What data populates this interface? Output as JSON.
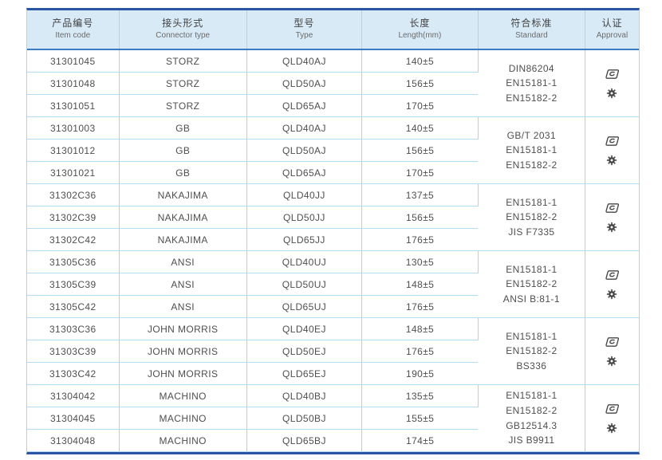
{
  "table": {
    "columns": [
      {
        "zh": "产品编号",
        "en": "Item code"
      },
      {
        "zh": "接头形式",
        "en": "Connector type"
      },
      {
        "zh": "型号",
        "en": "Type"
      },
      {
        "zh": "长度",
        "en": "Length(mm)"
      },
      {
        "zh": "符合标准",
        "en": "Standard"
      },
      {
        "zh": "认证",
        "en": "Approval"
      }
    ],
    "groups": [
      {
        "rows": [
          {
            "item_code": "31301045",
            "connector": "STORZ",
            "type": "QLD40AJ",
            "length": "140±5"
          },
          {
            "item_code": "31301048",
            "connector": "STORZ",
            "type": "QLD50AJ",
            "length": "156±5"
          },
          {
            "item_code": "31301051",
            "connector": "STORZ",
            "type": "QLD65AJ",
            "length": "170±5"
          }
        ],
        "standards": [
          "DIN86204",
          "EN15181-1",
          "EN15182-2"
        ],
        "approval_icons": [
          "certification-logo-icon",
          "gear-badge-icon"
        ]
      },
      {
        "rows": [
          {
            "item_code": "31301003",
            "connector": "GB",
            "type": "QLD40AJ",
            "length": "140±5"
          },
          {
            "item_code": "31301012",
            "connector": "GB",
            "type": "QLD50AJ",
            "length": "156±5"
          },
          {
            "item_code": "31301021",
            "connector": "GB",
            "type": "QLD65AJ",
            "length": "170±5"
          }
        ],
        "standards": [
          "GB/T 2031",
          "EN15181-1",
          "EN15182-2"
        ],
        "approval_icons": [
          "certification-logo-icon",
          "gear-badge-icon"
        ]
      },
      {
        "rows": [
          {
            "item_code": "31302C36",
            "connector": "NAKAJIMA",
            "type": "QLD40JJ",
            "length": "137±5"
          },
          {
            "item_code": "31302C39",
            "connector": "NAKAJIMA",
            "type": "QLD50JJ",
            "length": "156±5"
          },
          {
            "item_code": "31302C42",
            "connector": "NAKAJIMA",
            "type": "QLD65JJ",
            "length": "176±5"
          }
        ],
        "standards": [
          "EN15181-1",
          "EN15182-2",
          "JIS F7335"
        ],
        "approval_icons": [
          "certification-logo-icon",
          "gear-badge-icon"
        ]
      },
      {
        "rows": [
          {
            "item_code": "31305C36",
            "connector": "ANSI",
            "type": "QLD40UJ",
            "length": "130±5"
          },
          {
            "item_code": "31305C39",
            "connector": "ANSI",
            "type": "QLD50UJ",
            "length": "148±5"
          },
          {
            "item_code": "31305C42",
            "connector": "ANSI",
            "type": "QLD65UJ",
            "length": "176±5"
          }
        ],
        "standards": [
          "EN15181-1",
          "EN15182-2",
          "ANSI B:81-1"
        ],
        "approval_icons": [
          "certification-logo-icon",
          "gear-badge-icon"
        ]
      },
      {
        "rows": [
          {
            "item_code": "31303C36",
            "connector": "JOHN MORRIS",
            "type": "QLD40EJ",
            "length": "148±5"
          },
          {
            "item_code": "31303C39",
            "connector": "JOHN MORRIS",
            "type": "QLD50EJ",
            "length": "176±5"
          },
          {
            "item_code": "31303C42",
            "connector": "JOHN MORRIS",
            "type": "QLD65EJ",
            "length": "190±5"
          }
        ],
        "standards": [
          "EN15181-1",
          "EN15182-2",
          "BS336"
        ],
        "approval_icons": [
          "certification-logo-icon",
          "gear-badge-icon"
        ]
      },
      {
        "rows": [
          {
            "item_code": "31304042",
            "connector": "MACHINO",
            "type": "QLD40BJ",
            "length": "135±5"
          },
          {
            "item_code": "31304045",
            "connector": "MACHINO",
            "type": "QLD50BJ",
            "length": "155±5"
          },
          {
            "item_code": "31304048",
            "connector": "MACHINO",
            "type": "QLD65BJ",
            "length": "174±5"
          }
        ],
        "standards": [
          "EN15181-1",
          "EN15182-2",
          "GB12514.3",
          "JIS B9911"
        ],
        "approval_icons": [
          "certification-logo-icon",
          "gear-badge-icon"
        ]
      }
    ]
  },
  "colors": {
    "outer_border": "#2a55a4",
    "header_bg": "#d9eaf7",
    "header_underline": "#3b7cc2",
    "grid_line": "#a6d7ef",
    "text": "#4f4f4f",
    "icon": "#454545"
  }
}
